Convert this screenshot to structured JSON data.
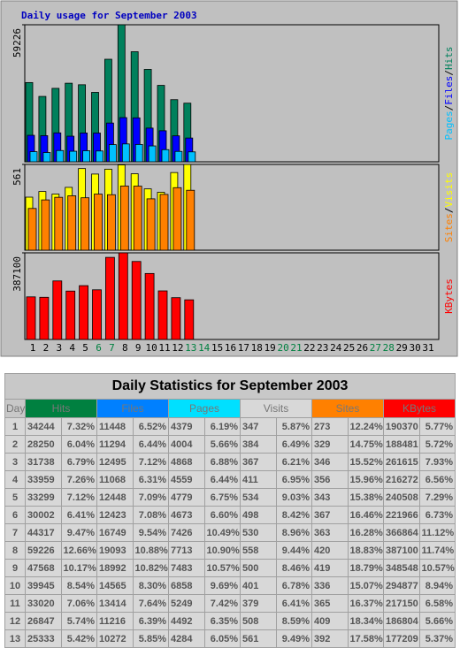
{
  "chart_data": {
    "type": "bar",
    "title": "Daily usage for September 2003",
    "categories": [
      1,
      2,
      3,
      4,
      5,
      6,
      7,
      8,
      9,
      10,
      11,
      12,
      13,
      14,
      15,
      16,
      17,
      18,
      19,
      20,
      21,
      22,
      23,
      24,
      25,
      26,
      27,
      28,
      29,
      30,
      31
    ],
    "weekends": [
      6,
      7,
      13,
      14,
      20,
      21,
      27,
      28
    ],
    "weekend_color": "#008040",
    "legend_separator": "/",
    "panels": [
      {
        "ylim": [
          0,
          59226
        ],
        "series": [
          {
            "name": "Hits",
            "color": "#00805c",
            "values": [
              34244,
              28250,
              31738,
              33959,
              33299,
              30002,
              44317,
              59226,
              47568,
              39945,
              33020,
              26847,
              25333,
              null,
              null,
              null,
              null,
              null,
              null,
              null,
              null,
              null,
              null,
              null,
              null,
              null,
              null,
              null,
              null,
              null,
              null
            ]
          },
          {
            "name": "Files",
            "color": "#0000ff",
            "values": [
              11448,
              11294,
              12495,
              11068,
              12448,
              12423,
              16749,
              19093,
              18992,
              14565,
              13414,
              11216,
              10272,
              null,
              null,
              null,
              null,
              null,
              null,
              null,
              null,
              null,
              null,
              null,
              null,
              null,
              null,
              null,
              null,
              null,
              null
            ]
          },
          {
            "name": "Pages",
            "color": "#00c0ff",
            "values": [
              4379,
              4004,
              4868,
              4559,
              4779,
              4673,
              7426,
              7713,
              7483,
              6858,
              5249,
              4492,
              4284,
              null,
              null,
              null,
              null,
              null,
              null,
              null,
              null,
              null,
              null,
              null,
              null,
              null,
              null,
              null,
              null,
              null,
              null
            ]
          }
        ]
      },
      {
        "ylim": [
          0,
          561
        ],
        "series": [
          {
            "name": "Visits",
            "color": "#ffff00",
            "values": [
              347,
              384,
              367,
              411,
              534,
              498,
              530,
              558,
              500,
              401,
              379,
              508,
              561,
              null,
              null,
              null,
              null,
              null,
              null,
              null,
              null,
              null,
              null,
              null,
              null,
              null,
              null,
              null,
              null,
              null,
              null
            ]
          },
          {
            "name": "Sites",
            "color": "#ff8000",
            "values": [
              273,
              329,
              346,
              356,
              343,
              367,
              363,
              420,
              419,
              336,
              365,
              409,
              392,
              null,
              null,
              null,
              null,
              null,
              null,
              null,
              null,
              null,
              null,
              null,
              null,
              null,
              null,
              null,
              null,
              null,
              null
            ]
          }
        ]
      },
      {
        "ylim": [
          0,
          387100
        ],
        "series": [
          {
            "name": "KBytes",
            "color": "#ff0000",
            "values": [
              190370,
              188481,
              261615,
              216272,
              240508,
              221966,
              366864,
              387100,
              348548,
              294877,
              217150,
              186804,
              177209,
              null,
              null,
              null,
              null,
              null,
              null,
              null,
              null,
              null,
              null,
              null,
              null,
              null,
              null,
              null,
              null,
              null,
              null
            ]
          }
        ]
      }
    ]
  },
  "table": {
    "title": "Daily Statistics for September 2003",
    "day_header": "Day",
    "columns": [
      {
        "name": "Hits",
        "color": "#008040"
      },
      {
        "name": "Files",
        "color": "#0080ff"
      },
      {
        "name": "Pages",
        "color": "#00e0ff"
      },
      {
        "name": "Visits",
        "color": "#d8d8d8"
      },
      {
        "name": "Sites",
        "color": "#ff8000"
      },
      {
        "name": "KBytes",
        "color": "#ff0000"
      }
    ],
    "percents": [
      [
        "7.32%",
        "6.52%",
        "6.19%",
        "5.87%",
        "12.24%",
        "5.77%"
      ],
      [
        "6.04%",
        "6.44%",
        "5.66%",
        "6.49%",
        "14.75%",
        "5.72%"
      ],
      [
        "6.79%",
        "7.12%",
        "6.88%",
        "6.21%",
        "15.52%",
        "7.93%"
      ],
      [
        "7.26%",
        "6.31%",
        "6.44%",
        "6.95%",
        "15.96%",
        "6.56%"
      ],
      [
        "7.12%",
        "7.09%",
        "6.75%",
        "9.03%",
        "15.38%",
        "7.29%"
      ],
      [
        "6.41%",
        "7.08%",
        "6.60%",
        "8.42%",
        "16.46%",
        "6.73%"
      ],
      [
        "9.47%",
        "9.54%",
        "10.49%",
        "8.96%",
        "16.28%",
        "11.12%"
      ],
      [
        "12.66%",
        "10.88%",
        "10.90%",
        "9.44%",
        "18.83%",
        "11.74%"
      ],
      [
        "10.17%",
        "10.82%",
        "10.57%",
        "8.46%",
        "18.79%",
        "10.57%"
      ],
      [
        "8.54%",
        "8.30%",
        "9.69%",
        "6.78%",
        "15.07%",
        "8.94%"
      ],
      [
        "7.06%",
        "7.64%",
        "7.42%",
        "6.41%",
        "16.37%",
        "6.58%"
      ],
      [
        "5.74%",
        "6.39%",
        "6.35%",
        "8.59%",
        "18.34%",
        "5.66%"
      ],
      [
        "5.42%",
        "5.85%",
        "6.05%",
        "9.49%",
        "17.58%",
        "5.37%"
      ]
    ]
  }
}
